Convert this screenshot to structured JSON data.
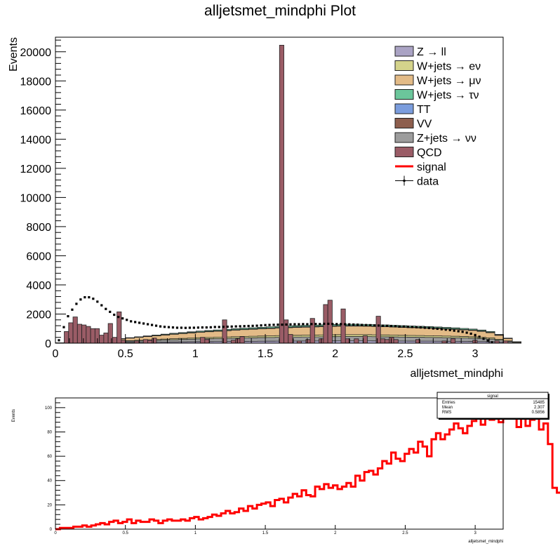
{
  "chart_data": [
    {
      "type": "histogram-stack",
      "title": "alljetsmet_mindphi Plot",
      "xlabel": "alljetsmet_mindphi",
      "ylabel": "Events",
      "xlim": [
        0,
        3.2
      ],
      "ylim": [
        0,
        21000
      ],
      "xticks": [
        "0",
        "0.5",
        "1",
        "1.5",
        "2",
        "2.5",
        "3"
      ],
      "yticks": [
        "0",
        "2000",
        "4000",
        "6000",
        "8000",
        "10000",
        "12000",
        "14000",
        "16000",
        "18000",
        "20000"
      ],
      "legend_position": "top-right",
      "legend": [
        {
          "label": "Z → ll",
          "color": "#aaa3c4",
          "kind": "fill"
        },
        {
          "label": "W+jets → eν",
          "color": "#d4d38b",
          "kind": "fill"
        },
        {
          "label": "W+jets → μν",
          "color": "#e3bb87",
          "kind": "fill"
        },
        {
          "label": "W+jets → τν",
          "color": "#6bc69b",
          "kind": "fill"
        },
        {
          "label": "TT",
          "color": "#7b9ddd",
          "kind": "fill"
        },
        {
          "label": "VV",
          "color": "#8d5e4d",
          "kind": "fill"
        },
        {
          "label": "Z+jets → νν",
          "color": "#9c9c9c",
          "kind": "fill"
        },
        {
          "label": "QCD",
          "color": "#9a5c66",
          "kind": "fill"
        },
        {
          "label": "signal",
          "color": "#ff0000",
          "kind": "line"
        },
        {
          "label": "data",
          "color": "#000000",
          "kind": "marker"
        }
      ],
      "bin_width": 0.0314,
      "qcd_bins": [
        [
          2,
          800
        ],
        [
          3,
          1400
        ],
        [
          4,
          1800
        ],
        [
          5,
          1300
        ],
        [
          6,
          1250
        ],
        [
          7,
          1150
        ],
        [
          8,
          1000
        ],
        [
          9,
          1000
        ],
        [
          10,
          550
        ],
        [
          11,
          700
        ],
        [
          12,
          1350
        ],
        [
          13,
          400
        ],
        [
          14,
          2150
        ],
        [
          15,
          200
        ],
        [
          18,
          150
        ],
        [
          20,
          250
        ],
        [
          21,
          200
        ],
        [
          22,
          350
        ],
        [
          33,
          400
        ],
        [
          34,
          250
        ],
        [
          40,
          200
        ],
        [
          41,
          300
        ],
        [
          42,
          450
        ],
        [
          52,
          1600
        ],
        [
          53,
          600
        ],
        [
          55,
          150
        ],
        [
          57,
          250
        ],
        [
          60,
          300
        ],
        [
          66,
          300
        ],
        [
          68,
          300
        ],
        [
          70,
          500
        ],
        [
          73,
          1850
        ],
        [
          74,
          300
        ],
        [
          75,
          250
        ],
        [
          76,
          400
        ],
        [
          77,
          250
        ],
        [
          82,
          250
        ],
        [
          88,
          150
        ],
        [
          90,
          300
        ],
        [
          95,
          200
        ],
        [
          100,
          150
        ],
        [
          102,
          150
        ]
      ],
      "qcd_spikes": [
        {
          "x_bin": 51,
          "value": 20450
        },
        {
          "x_bin": 61,
          "value": 2650
        },
        {
          "x_bin": 62,
          "value": 2950
        },
        {
          "x_bin": 58,
          "value": 1700
        },
        {
          "x_bin": 65,
          "value": 2350
        },
        {
          "x_bin": 38,
          "value": 1600
        }
      ],
      "background_total": [
        [
          0,
          20
        ],
        [
          2,
          60
        ],
        [
          4,
          100
        ],
        [
          6,
          130
        ],
        [
          8,
          160
        ],
        [
          10,
          200
        ],
        [
          12,
          250
        ],
        [
          14,
          320
        ],
        [
          16,
          380
        ],
        [
          18,
          440
        ],
        [
          20,
          500
        ],
        [
          22,
          560
        ],
        [
          24,
          620
        ],
        [
          26,
          680
        ],
        [
          28,
          730
        ],
        [
          30,
          780
        ],
        [
          32,
          830
        ],
        [
          34,
          870
        ],
        [
          36,
          910
        ],
        [
          38,
          950
        ],
        [
          40,
          990
        ],
        [
          42,
          1030
        ],
        [
          44,
          1060
        ],
        [
          46,
          1090
        ],
        [
          48,
          1120
        ],
        [
          50,
          1150
        ],
        [
          52,
          1180
        ],
        [
          54,
          1200
        ],
        [
          56,
          1220
        ],
        [
          58,
          1240
        ],
        [
          60,
          1260
        ],
        [
          62,
          1280
        ],
        [
          64,
          1290
        ],
        [
          66,
          1300
        ],
        [
          68,
          1300
        ],
        [
          70,
          1290
        ],
        [
          72,
          1270
        ],
        [
          74,
          1250
        ],
        [
          76,
          1230
        ],
        [
          78,
          1200
        ],
        [
          80,
          1180
        ],
        [
          82,
          1160
        ],
        [
          84,
          1140
        ],
        [
          86,
          1110
        ],
        [
          88,
          1080
        ],
        [
          90,
          1050
        ],
        [
          92,
          1010
        ],
        [
          94,
          970
        ],
        [
          96,
          900
        ],
        [
          98,
          800
        ],
        [
          100,
          600
        ],
        [
          102,
          350
        ],
        [
          104,
          100
        ],
        [
          106,
          0
        ]
      ],
      "data_points": [
        [
          0.025,
          200
        ],
        [
          0.06,
          1100
        ],
        [
          0.09,
          1850
        ],
        [
          0.12,
          2300
        ],
        [
          0.15,
          2700
        ],
        [
          0.18,
          3000
        ],
        [
          0.21,
          3150
        ],
        [
          0.24,
          3150
        ],
        [
          0.27,
          3050
        ],
        [
          0.3,
          2850
        ],
        [
          0.33,
          2600
        ],
        [
          0.36,
          2350
        ],
        [
          0.39,
          2150
        ],
        [
          0.42,
          1950
        ],
        [
          0.45,
          1800
        ],
        [
          0.48,
          1700
        ],
        [
          0.51,
          1600
        ],
        [
          0.54,
          1500
        ],
        [
          0.57,
          1450
        ],
        [
          0.6,
          1400
        ],
        [
          0.63,
          1350
        ],
        [
          0.66,
          1300
        ],
        [
          0.69,
          1250
        ],
        [
          0.72,
          1200
        ],
        [
          0.75,
          1150
        ],
        [
          0.78,
          1120
        ],
        [
          0.81,
          1100
        ],
        [
          0.84,
          1080
        ],
        [
          0.87,
          1060
        ],
        [
          0.9,
          1060
        ],
        [
          0.93,
          1050
        ],
        [
          0.96,
          1060
        ],
        [
          0.99,
          1060
        ],
        [
          1.02,
          1070
        ],
        [
          1.05,
          1080
        ],
        [
          1.08,
          1080
        ],
        [
          1.11,
          1090
        ],
        [
          1.14,
          1110
        ],
        [
          1.17,
          1110
        ],
        [
          1.2,
          1120
        ],
        [
          1.23,
          1130
        ],
        [
          1.26,
          1140
        ],
        [
          1.29,
          1150
        ],
        [
          1.32,
          1160
        ],
        [
          1.35,
          1170
        ],
        [
          1.38,
          1180
        ],
        [
          1.41,
          1190
        ],
        [
          1.44,
          1200
        ],
        [
          1.47,
          1220
        ],
        [
          1.5,
          1240
        ],
        [
          1.53,
          1250
        ],
        [
          1.56,
          1260
        ],
        [
          1.59,
          1270
        ],
        [
          1.62,
          1270
        ],
        [
          1.65,
          1280
        ],
        [
          1.68,
          1290
        ],
        [
          1.71,
          1300
        ],
        [
          1.74,
          1300
        ],
        [
          1.77,
          1310
        ],
        [
          1.8,
          1300
        ],
        [
          1.83,
          1310
        ],
        [
          1.86,
          1320
        ],
        [
          1.89,
          1310
        ],
        [
          1.92,
          1330
        ],
        [
          1.95,
          1330
        ],
        [
          1.98,
          1320
        ],
        [
          2.01,
          1310
        ],
        [
          2.04,
          1310
        ],
        [
          2.07,
          1300
        ],
        [
          2.1,
          1290
        ],
        [
          2.13,
          1280
        ],
        [
          2.16,
          1270
        ],
        [
          2.19,
          1250
        ],
        [
          2.22,
          1240
        ],
        [
          2.25,
          1230
        ],
        [
          2.28,
          1220
        ],
        [
          2.31,
          1210
        ],
        [
          2.34,
          1200
        ],
        [
          2.37,
          1190
        ],
        [
          2.4,
          1180
        ],
        [
          2.43,
          1160
        ],
        [
          2.46,
          1150
        ],
        [
          2.49,
          1140
        ],
        [
          2.52,
          1130
        ],
        [
          2.55,
          1110
        ],
        [
          2.58,
          1100
        ],
        [
          2.61,
          1080
        ],
        [
          2.64,
          1060
        ],
        [
          2.67,
          1040
        ],
        [
          2.7,
          1010
        ],
        [
          2.73,
          990
        ],
        [
          2.76,
          960
        ],
        [
          2.79,
          930
        ],
        [
          2.82,
          900
        ],
        [
          2.85,
          860
        ],
        [
          2.88,
          820
        ],
        [
          2.91,
          780
        ],
        [
          2.94,
          720
        ],
        [
          2.97,
          650
        ],
        [
          3.0,
          560
        ],
        [
          3.03,
          440
        ],
        [
          3.06,
          300
        ],
        [
          3.09,
          170
        ],
        [
          3.12,
          60
        ]
      ]
    },
    {
      "type": "histogram",
      "xlabel": "alljetsmet_mindphi",
      "ylabel": "Events",
      "xlim": [
        0,
        3.2
      ],
      "ylim": [
        0,
        108
      ],
      "xticks": [
        "0",
        "0.5",
        "1",
        "1.5",
        "2",
        "2.5",
        "3"
      ],
      "yticks": [
        "0",
        "20",
        "40",
        "60",
        "80",
        "100"
      ],
      "series_name": "signal",
      "color": "#ff0000",
      "bin_width": 0.032,
      "values": [
        0,
        1,
        1,
        1,
        2,
        2,
        3,
        2,
        3,
        4,
        5,
        4,
        6,
        7,
        5,
        6,
        8,
        5,
        7,
        6,
        6,
        8,
        7,
        5,
        7,
        8,
        7,
        7,
        8,
        7,
        9,
        10,
        8,
        9,
        10,
        12,
        11,
        13,
        15,
        13,
        14,
        17,
        15,
        19,
        17,
        20,
        21,
        22,
        19,
        24,
        25,
        22,
        26,
        29,
        27,
        32,
        28,
        27,
        35,
        33,
        37,
        34,
        36,
        33,
        35,
        38,
        35,
        44,
        40,
        47,
        48,
        45,
        50,
        56,
        54,
        63,
        58,
        56,
        62,
        66,
        63,
        72,
        68,
        60,
        74,
        79,
        74,
        78,
        82,
        87,
        83,
        79,
        85,
        89,
        92,
        86,
        96,
        90,
        97,
        88,
        93,
        98,
        92,
        84,
        91,
        85,
        90,
        97,
        82,
        87,
        70,
        34,
        30,
        2,
        0
      ],
      "statbox": {
        "title": "signal",
        "rows": [
          {
            "k": "Entries",
            "v": "15485"
          },
          {
            "k": "Mean",
            "v": "2.307"
          },
          {
            "k": "RMS",
            "v": "0.5856"
          }
        ]
      }
    }
  ]
}
